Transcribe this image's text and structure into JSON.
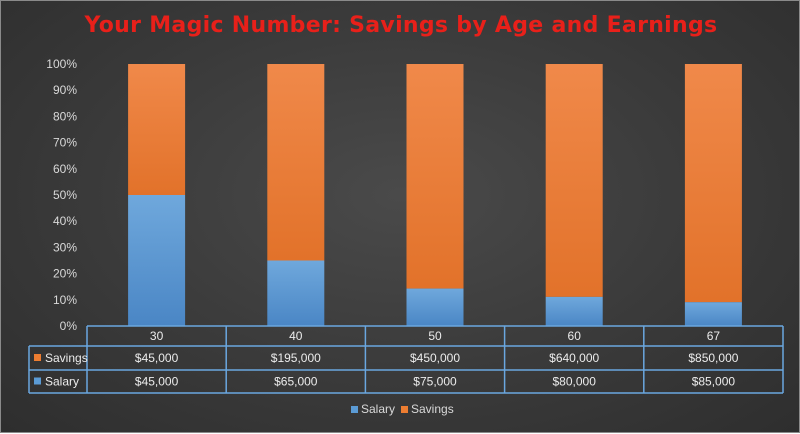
{
  "chart_data": {
    "type": "bar",
    "stacked": "percent",
    "title": "Your Magic Number: Savings by Age and Earnings",
    "categories": [
      "30",
      "40",
      "50",
      "60",
      "67"
    ],
    "series": [
      {
        "name": "Salary",
        "values": [
          45000,
          65000,
          75000,
          80000,
          85000
        ],
        "labels": [
          "$45,000",
          "$65,000",
          "$75,000",
          "$80,000",
          "$85,000"
        ],
        "color": "#5b9bd5"
      },
      {
        "name": "Savings",
        "values": [
          45000,
          195000,
          450000,
          640000,
          850000
        ],
        "labels": [
          "$45,000",
          "$195,000",
          "$450,000",
          "$640,000",
          "$850,000"
        ],
        "color": "#ed7d31"
      }
    ],
    "y_ticks": [
      "0%",
      "10%",
      "20%",
      "30%",
      "40%",
      "50%",
      "60%",
      "70%",
      "80%",
      "90%",
      "100%"
    ],
    "ylim": [
      0,
      100
    ],
    "grid": false,
    "data_table": true,
    "legend_position": "bottom",
    "legend": [
      "Salary",
      "Savings"
    ]
  },
  "colors": {
    "title": "#e8201a",
    "background": "#3a3a3a",
    "table_border": "#6aa7e0"
  }
}
